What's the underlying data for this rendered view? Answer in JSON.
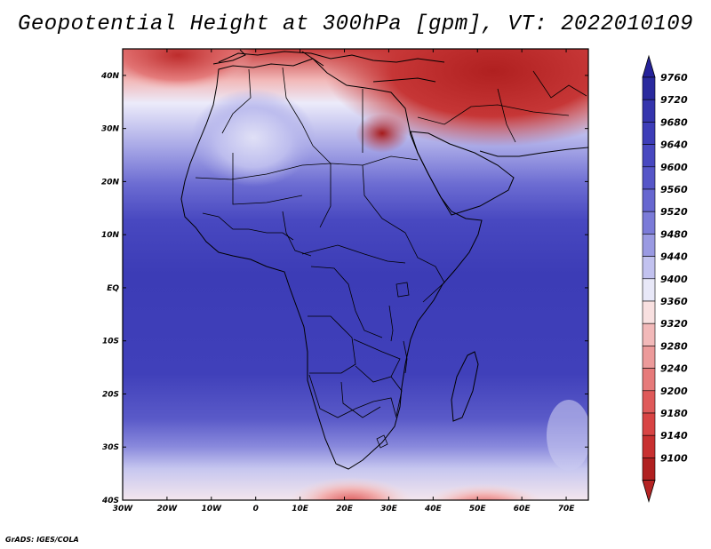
{
  "title": "Geopotential Height at 300hPa [gpm], VT: 2022010109",
  "credit": "GrADS: IGES/COLA",
  "map": {
    "region": "Africa",
    "variable": "Geopotential Height",
    "level": "300hPa",
    "units": "gpm",
    "valid_time": "2022010109",
    "lat_range": [
      -40,
      45
    ],
    "lon_range": [
      -30,
      75
    ],
    "lat_ticks": [
      {
        "value": 40,
        "label": "40N"
      },
      {
        "value": 30,
        "label": "30N"
      },
      {
        "value": 20,
        "label": "20N"
      },
      {
        "value": 10,
        "label": "10N"
      },
      {
        "value": 0,
        "label": "EQ"
      },
      {
        "value": -10,
        "label": "10S"
      },
      {
        "value": -20,
        "label": "20S"
      },
      {
        "value": -30,
        "label": "30S"
      },
      {
        "value": -40,
        "label": "40S"
      }
    ],
    "lon_ticks": [
      {
        "value": -30,
        "label": "30W"
      },
      {
        "value": -20,
        "label": "20W"
      },
      {
        "value": -10,
        "label": "10W"
      },
      {
        "value": 0,
        "label": "0"
      },
      {
        "value": 10,
        "label": "10E"
      },
      {
        "value": 20,
        "label": "20E"
      },
      {
        "value": 30,
        "label": "30E"
      },
      {
        "value": 40,
        "label": "40E"
      },
      {
        "value": 50,
        "label": "50E"
      },
      {
        "value": 60,
        "label": "60E"
      },
      {
        "value": 70,
        "label": "70E"
      }
    ]
  },
  "colorbar": {
    "levels": [
      {
        "label": "9760",
        "color": "#2a2a9e"
      },
      {
        "label": "9720",
        "color": "#3535ad"
      },
      {
        "label": "9680",
        "color": "#3d3db8"
      },
      {
        "label": "9640",
        "color": "#4848c0"
      },
      {
        "label": "9600",
        "color": "#5656c8"
      },
      {
        "label": "9560",
        "color": "#6767d0"
      },
      {
        "label": "9520",
        "color": "#7b7bd8"
      },
      {
        "label": "9480",
        "color": "#9a9ae2"
      },
      {
        "label": "9440",
        "color": "#c2c2ef"
      },
      {
        "label": "9400",
        "color": "#e8e8f8"
      },
      {
        "label": "9360",
        "color": "#f8e0e0"
      },
      {
        "label": "9320",
        "color": "#f2b9b9"
      },
      {
        "label": "9280",
        "color": "#ec9a9a"
      },
      {
        "label": "9240",
        "color": "#e67a7a"
      },
      {
        "label": "9200",
        "color": "#df5a5a"
      },
      {
        "label": "9180",
        "color": "#d84444"
      },
      {
        "label": "9140",
        "color": "#c83030"
      },
      {
        "label": "9100",
        "color": "#b02020"
      }
    ],
    "top_arrow_color": "#25229a",
    "bottom_arrow_color": "#b52424"
  }
}
